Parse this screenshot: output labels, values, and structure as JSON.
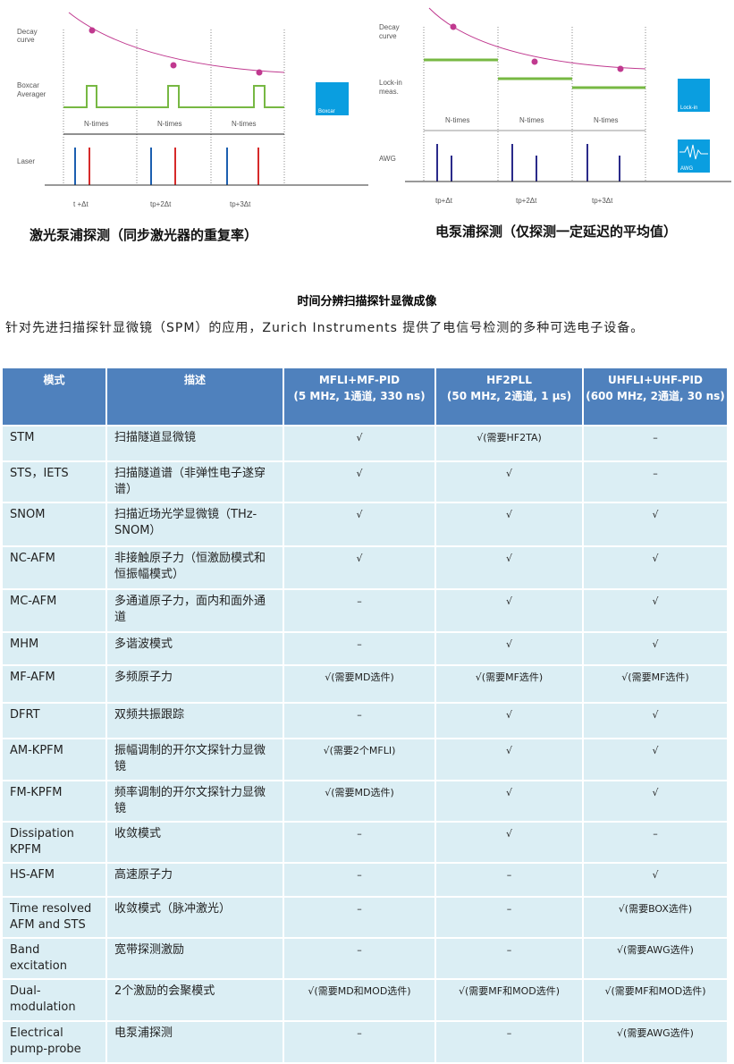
{
  "diagram_left": {
    "labels": [
      "Decay",
      "curve",
      "Boxcar",
      "Averager",
      "Laser"
    ],
    "n_times": "N-times",
    "delays": [
      "t +Δt",
      "tp+2Δt",
      "tp+3Δt"
    ],
    "badge": "Boxcar",
    "caption": "激光泵浦探测（同步激光器的重复率）"
  },
  "diagram_right": {
    "labels": [
      "Decay",
      "curve",
      "Lock-in",
      "meas.",
      "AWG"
    ],
    "n_times": "N-times",
    "delays": [
      "tp+Δt",
      "tp+2Δt",
      "tp+3Δt"
    ],
    "badge_lockin": "Lock-in",
    "badge_awg": "AWG",
    "caption": "电泵浦探测（仅探测一定延迟的平均值）"
  },
  "colors": {
    "header": "#4f81bd",
    "row": "#dbeef4",
    "decay": "#c0398f",
    "green": "#77b843",
    "badge": "#0a9ee0"
  },
  "title": "时间分辨扫描探针显微成像",
  "intro": "针对先进扫描探针显微镜（SPM）的应用，Zurich Instruments 提供了电信号检测的多种可选电子设备。",
  "table": {
    "headers": [
      [
        "模式",
        ""
      ],
      [
        "描述",
        ""
      ],
      [
        "MFLI+MF-PID",
        "(5 MHz, 1通道, 330 ns)"
      ],
      [
        "HF2PLL",
        "(50 MHz, 2通道, 1 µs)"
      ],
      [
        "UHFLI+UHF-PID",
        "(600 MHz, 2通道, 30 ns)"
      ]
    ],
    "rows": [
      [
        "STM",
        "扫描隧道显微镜",
        "√",
        "√(需要HF2TA)",
        "–"
      ],
      [
        "STS，IETS",
        "扫描隧道谱（非弹性电子遂穿谱）",
        "√",
        "√",
        "–"
      ],
      [
        "SNOM",
        "扫描近场光学显微镜（THz-SNOM）",
        "√",
        "√",
        "√"
      ],
      [
        "NC-AFM",
        "非接触原子力（恒激励模式和恒振幅模式）",
        "√",
        "√",
        "√"
      ],
      [
        "MC-AFM",
        "多通道原子力，面内和面外通道",
        "–",
        "√",
        "√"
      ],
      [
        "MHM",
        "多谐波模式",
        "–",
        "√",
        "√"
      ],
      [
        "MF-AFM",
        "多频原子力",
        "√(需要MD选件)",
        "√(需要MF选件)",
        "√(需要MF选件)"
      ],
      [
        "DFRT",
        "双频共振跟踪",
        "–",
        "√",
        "√"
      ],
      [
        "AM-KPFM",
        "振幅调制的开尔文探针力显微镜",
        "√(需要2个MFLI)",
        "√",
        "√"
      ],
      [
        "FM-KPFM",
        "频率调制的开尔文探针力显微镜",
        "√(需要MD选件)",
        "√",
        "√"
      ],
      [
        "Dissipation KPFM",
        "收敛模式",
        "–",
        "√",
        "–"
      ],
      [
        "HS-AFM",
        "高速原子力",
        "–",
        "–",
        "√"
      ],
      [
        "Time resolved AFM and STS",
        "收敛模式（脉冲激光）",
        "–",
        "–",
        "√(需要BOX选件)"
      ],
      [
        "Band excitation",
        "宽带探测激励",
        "–",
        "–",
        "√(需要AWG选件)"
      ],
      [
        "Dual-modulation",
        "2个激励的会聚模式",
        "√(需要MD和MOD选件)",
        "√(需要MF和MOD选件)",
        "√(需要MF和MOD选件)"
      ],
      [
        "Electrical pump-probe",
        "电泵浦探测",
        "–",
        "–",
        "√(需要AWG选件)"
      ]
    ]
  }
}
